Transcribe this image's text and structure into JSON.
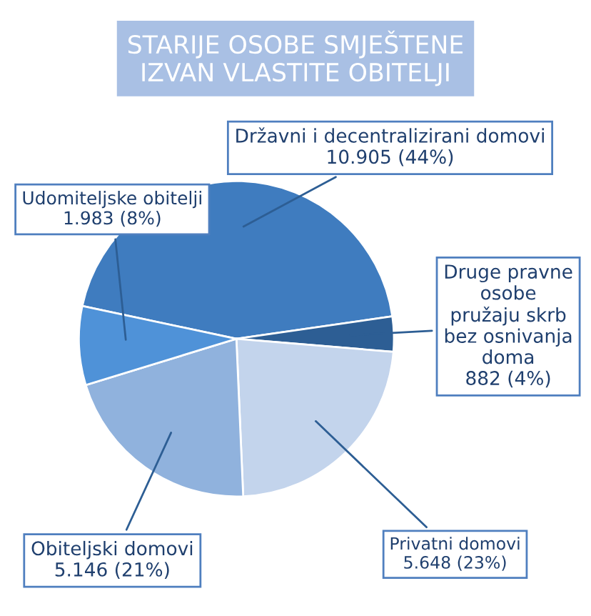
{
  "chart_data": {
    "type": "pie",
    "title": "STARIJE OSOBE SMJEŠTENE\nIZVAN VLASTITE OBITELJI",
    "categories": [
      "Državni i decentralizirani domovi",
      "Druge pravne osobe pružaju skrb bez osnivanja doma",
      "Privatni domovi",
      "Obiteljski domovi",
      "Udomiteljske obitelji"
    ],
    "values": [
      10905,
      882,
      5648,
      5146,
      1983
    ],
    "value_labels": [
      "10.905 (44%)",
      "882 (4%)",
      "5.648 (23%)",
      "5.146 (21%)",
      "1.983 (8%)"
    ],
    "colors": [
      "#3f7cbf",
      "#2d5e94",
      "#c3d4ec",
      "#90b2dd",
      "#4f92d8"
    ]
  }
}
